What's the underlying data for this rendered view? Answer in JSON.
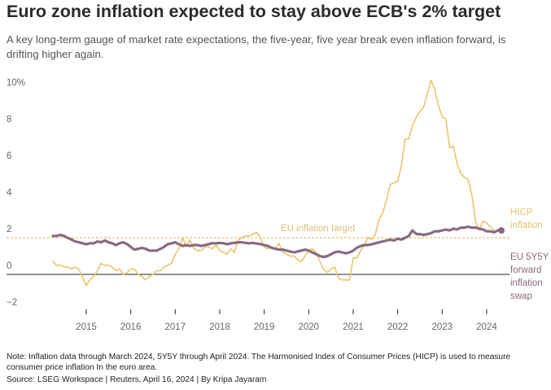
{
  "header": {
    "title": "Euro zone inflation expected to stay above ECB's 2% target",
    "subtitle": "A key long-term gauge of market rate expectations, the five-year, five year break even inflation forward, is drifting higher again."
  },
  "footer": {
    "note": "Note: Inflation data through March 2024, 5Y5Y through April 2024. The Harmonised Index of Consumer Prices (HICP) is used to measure consumer price inflation In the euro area.",
    "source": "Source: LSEG Workspace | Reuters, April 16, 2024 | By Kripa Jayaram"
  },
  "colors": {
    "hicp": "#e8c56b",
    "swap": "#8a6a80",
    "target": "#dcc27a",
    "axis": "#222222",
    "tick_text": "#666666"
  },
  "chart_data": {
    "type": "line",
    "title": "Euro zone inflation expected to stay above ECB's 2% target",
    "ylabel": "",
    "xlabel": "",
    "ylim": [
      -2,
      10.5
    ],
    "xlim": [
      2014.0,
      2024.6
    ],
    "y_ticks": [
      {
        "value": 10,
        "label": "10%"
      },
      {
        "value": 8,
        "label": "8"
      },
      {
        "value": 6,
        "label": "6"
      },
      {
        "value": 4,
        "label": "4"
      },
      {
        "value": 2,
        "label": "2"
      },
      {
        "value": 0,
        "label": "0"
      },
      {
        "value": -2,
        "label": "−2"
      }
    ],
    "x_ticks": [
      {
        "value": 2015.0,
        "label": "2015"
      },
      {
        "value": 2016.0,
        "label": "2016"
      },
      {
        "value": 2017.0,
        "label": "2017"
      },
      {
        "value": 2018.0,
        "label": "2018"
      },
      {
        "value": 2019.0,
        "label": "2019"
      },
      {
        "value": 2020.0,
        "label": "2020"
      },
      {
        "value": 2021.0,
        "label": "2021"
      },
      {
        "value": 2022.0,
        "label": "2022"
      },
      {
        "value": 2023.0,
        "label": "2023"
      },
      {
        "value": 2024.0,
        "label": "2024"
      }
    ],
    "reference_line": {
      "value": 2,
      "label": "EU inflation target"
    },
    "series": [
      {
        "name": "HICP inflation",
        "legend_lines": [
          "HICP",
          "inflation"
        ],
        "x": [
          2014.25,
          2014.33,
          2014.42,
          2014.5,
          2014.58,
          2014.67,
          2014.75,
          2014.83,
          2014.92,
          2015.0,
          2015.08,
          2015.17,
          2015.25,
          2015.33,
          2015.42,
          2015.5,
          2015.58,
          2015.67,
          2015.75,
          2015.83,
          2015.92,
          2016.0,
          2016.08,
          2016.17,
          2016.25,
          2016.33,
          2016.42,
          2016.5,
          2016.58,
          2016.67,
          2016.75,
          2016.83,
          2016.92,
          2017.0,
          2017.08,
          2017.17,
          2017.25,
          2017.33,
          2017.42,
          2017.5,
          2017.58,
          2017.67,
          2017.75,
          2017.83,
          2017.92,
          2018.0,
          2018.08,
          2018.17,
          2018.25,
          2018.33,
          2018.42,
          2018.5,
          2018.58,
          2018.67,
          2018.75,
          2018.83,
          2018.92,
          2019.0,
          2019.08,
          2019.17,
          2019.25,
          2019.33,
          2019.42,
          2019.5,
          2019.58,
          2019.67,
          2019.75,
          2019.83,
          2019.92,
          2020.0,
          2020.08,
          2020.17,
          2020.25,
          2020.33,
          2020.42,
          2020.5,
          2020.58,
          2020.67,
          2020.75,
          2020.83,
          2020.92,
          2021.0,
          2021.08,
          2021.17,
          2021.25,
          2021.33,
          2021.42,
          2021.5,
          2021.58,
          2021.67,
          2021.75,
          2021.83,
          2021.92,
          2022.0,
          2022.08,
          2022.17,
          2022.25,
          2022.33,
          2022.42,
          2022.5,
          2022.58,
          2022.67,
          2022.75,
          2022.83,
          2022.92,
          2023.0,
          2023.08,
          2023.17,
          2023.25,
          2023.33,
          2023.42,
          2023.5,
          2023.58,
          2023.67,
          2023.75,
          2023.83,
          2023.92,
          2024.0,
          2024.08,
          2024.17
        ],
        "values": [
          0.7,
          0.5,
          0.5,
          0.4,
          0.4,
          0.3,
          0.4,
          0.3,
          -0.2,
          -0.6,
          -0.3,
          -0.1,
          0.2,
          0.6,
          0.5,
          0.5,
          0.4,
          0.2,
          0.3,
          0.0,
          0.1,
          0.3,
          0.3,
          0.0,
          -0.1,
          -0.3,
          -0.1,
          0.0,
          0.2,
          0.2,
          0.4,
          0.5,
          0.6,
          1.1,
          1.4,
          2.0,
          1.5,
          1.9,
          1.4,
          1.3,
          1.3,
          1.5,
          1.5,
          1.4,
          1.6,
          1.3,
          1.2,
          1.1,
          1.4,
          1.2,
          1.9,
          2.0,
          2.1,
          2.1,
          2.2,
          2.3,
          2.0,
          1.5,
          1.4,
          1.5,
          1.4,
          1.7,
          1.2,
          1.1,
          1.0,
          1.0,
          0.8,
          0.7,
          1.0,
          1.3,
          1.4,
          1.2,
          0.7,
          0.3,
          0.1,
          0.3,
          0.4,
          -0.2,
          -0.3,
          -0.3,
          -0.3,
          0.9,
          0.9,
          1.3,
          1.6,
          2.0,
          1.9,
          2.2,
          3.0,
          3.4,
          4.1,
          4.9,
          5.0,
          5.1,
          5.9,
          7.4,
          7.4,
          8.1,
          8.6,
          8.9,
          9.1,
          9.9,
          10.6,
          10.1,
          9.2,
          8.6,
          8.5,
          6.9,
          7.0,
          6.1,
          5.5,
          5.3,
          5.2,
          4.3,
          2.9,
          2.4,
          2.9,
          2.8,
          2.6,
          2.4
        ]
      },
      {
        "name": "EU 5Y5Y forward inflation swap",
        "legend_lines": [
          "EU 5Y5Y",
          "forward",
          "inflation",
          "swap"
        ],
        "x": [
          2014.25,
          2014.33,
          2014.42,
          2014.5,
          2014.58,
          2014.67,
          2014.75,
          2014.83,
          2014.92,
          2015.0,
          2015.08,
          2015.17,
          2015.25,
          2015.33,
          2015.42,
          2015.5,
          2015.58,
          2015.67,
          2015.75,
          2015.83,
          2015.92,
          2016.0,
          2016.08,
          2016.17,
          2016.25,
          2016.33,
          2016.42,
          2016.5,
          2016.58,
          2016.67,
          2016.75,
          2016.83,
          2016.92,
          2017.0,
          2017.08,
          2017.17,
          2017.25,
          2017.33,
          2017.42,
          2017.5,
          2017.58,
          2017.67,
          2017.75,
          2017.83,
          2017.92,
          2018.0,
          2018.08,
          2018.17,
          2018.25,
          2018.33,
          2018.42,
          2018.5,
          2018.58,
          2018.67,
          2018.75,
          2018.83,
          2018.92,
          2019.0,
          2019.08,
          2019.17,
          2019.25,
          2019.33,
          2019.42,
          2019.5,
          2019.58,
          2019.67,
          2019.75,
          2019.83,
          2019.92,
          2020.0,
          2020.08,
          2020.17,
          2020.25,
          2020.33,
          2020.42,
          2020.5,
          2020.58,
          2020.67,
          2020.75,
          2020.83,
          2020.92,
          2021.0,
          2021.08,
          2021.17,
          2021.25,
          2021.33,
          2021.42,
          2021.5,
          2021.58,
          2021.67,
          2021.75,
          2021.83,
          2021.92,
          2022.0,
          2022.08,
          2022.17,
          2022.25,
          2022.33,
          2022.42,
          2022.5,
          2022.58,
          2022.67,
          2022.75,
          2022.83,
          2022.92,
          2023.0,
          2023.08,
          2023.17,
          2023.25,
          2023.33,
          2023.42,
          2023.5,
          2023.58,
          2023.67,
          2023.75,
          2023.83,
          2023.92,
          2024.0,
          2024.08,
          2024.17,
          2024.25,
          2024.33
        ],
        "values": [
          2.1,
          2.1,
          2.15,
          2.1,
          2.0,
          1.9,
          1.8,
          1.75,
          1.7,
          1.65,
          1.7,
          1.7,
          1.8,
          1.75,
          1.85,
          1.75,
          1.7,
          1.6,
          1.7,
          1.75,
          1.65,
          1.5,
          1.35,
          1.4,
          1.45,
          1.4,
          1.3,
          1.3,
          1.3,
          1.4,
          1.5,
          1.65,
          1.7,
          1.75,
          1.65,
          1.55,
          1.6,
          1.55,
          1.6,
          1.6,
          1.55,
          1.6,
          1.65,
          1.7,
          1.7,
          1.72,
          1.7,
          1.65,
          1.7,
          1.72,
          1.75,
          1.75,
          1.72,
          1.7,
          1.72,
          1.68,
          1.65,
          1.6,
          1.55,
          1.45,
          1.4,
          1.35,
          1.35,
          1.3,
          1.25,
          1.2,
          1.25,
          1.3,
          1.35,
          1.3,
          1.2,
          1.1,
          1.0,
          0.95,
          1.0,
          1.1,
          1.2,
          1.25,
          1.2,
          1.15,
          1.2,
          1.3,
          1.45,
          1.55,
          1.6,
          1.6,
          1.65,
          1.7,
          1.75,
          1.8,
          1.85,
          1.9,
          1.85,
          1.95,
          1.9,
          2.0,
          2.1,
          2.4,
          2.2,
          2.2,
          2.15,
          2.2,
          2.25,
          2.35,
          2.35,
          2.4,
          2.45,
          2.4,
          2.5,
          2.45,
          2.55,
          2.55,
          2.6,
          2.55,
          2.55,
          2.5,
          2.45,
          2.35,
          2.35,
          2.3,
          2.4,
          2.4
        ]
      }
    ]
  }
}
